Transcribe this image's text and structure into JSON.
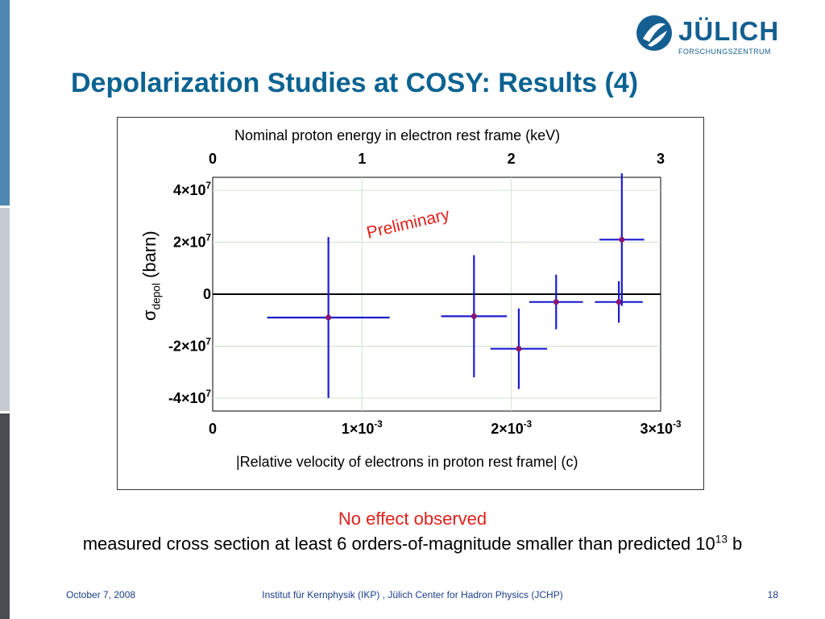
{
  "colors": {
    "title": "#0b6391",
    "accent": "#e0211b",
    "footer_text": "#1a3e8c",
    "data_series": "#1c1ccd",
    "data_marker": "#8a1470",
    "sidebar_blue": "#4e87b2",
    "sidebar_light": "#c6cbd2",
    "sidebar_dark": "#4a4d52",
    "logo_blue": "#145f91"
  },
  "logo": {
    "name": "JÜLICH",
    "subtitle": "FORSCHUNGSZENTRUM",
    "icon": "julich-logo-icon"
  },
  "slide": {
    "title": "Depolarization Studies at COSY: Results (4)",
    "note_highlight": "No effect observed",
    "note_text": "measured cross section at least 6 orders-of-magnitude smaller than predicted 10",
    "note_exponent": "13",
    "note_unit": " b"
  },
  "footer": {
    "date": "October 7, 2008",
    "institute": "Institut für Kernphysik (IKP) , Jülich Center for Hadron Physics (JCHP)",
    "page": "18"
  },
  "chart_data": {
    "type": "scatter",
    "annotation": "Preliminary",
    "xlabel": "|Relative velocity of electrons in proton rest frame| (c)",
    "x2label": "Nominal proton energy in electron rest frame (keV)",
    "ylabel_symbol": "σ",
    "ylabel_subscript": "depol",
    "ylabel_unit": " (barn)",
    "xlim": [
      0,
      0.003
    ],
    "x2lim": [
      0,
      3
    ],
    "ylim": [
      -45000000,
      45000000
    ],
    "grid": true,
    "x_ticks": [
      {
        "value": 0,
        "label": "0",
        "exp": ""
      },
      {
        "value": 0.001,
        "label": "1×10",
        "exp": "-3"
      },
      {
        "value": 0.002,
        "label": "2×10",
        "exp": "-3"
      },
      {
        "value": 0.003,
        "label": "3×10",
        "exp": "-3"
      }
    ],
    "x2_ticks": [
      {
        "value": 0,
        "label": "0"
      },
      {
        "value": 1,
        "label": "1"
      },
      {
        "value": 2,
        "label": "2"
      },
      {
        "value": 3,
        "label": "3"
      }
    ],
    "y_ticks": [
      {
        "value": 40000000,
        "label": "4×10",
        "exp": "7"
      },
      {
        "value": 20000000,
        "label": "2×10",
        "exp": "7"
      },
      {
        "value": 0,
        "label": "0",
        "exp": ""
      },
      {
        "value": -20000000,
        "label": "-2×10",
        "exp": "7"
      },
      {
        "value": -40000000,
        "label": "-4×10",
        "exp": "7"
      }
    ],
    "series": [
      {
        "points": [
          {
            "x": 0.000775,
            "y": -9000000,
            "xerr": 0.00041,
            "yerr": 31000000
          },
          {
            "x": 0.00175,
            "y": -8500000,
            "xerr": 0.00022,
            "yerr": 23500000
          },
          {
            "x": 0.00205,
            "y": -21000000,
            "xerr": 0.00019,
            "yerr": 15500000
          },
          {
            "x": 0.0023,
            "y": -3000000,
            "xerr": 0.00018,
            "yerr": 10500000
          },
          {
            "x": 0.00272,
            "y": -3000000,
            "xerr": 0.00016,
            "yerr": 8000000
          },
          {
            "x": 0.00274,
            "y": 21000000,
            "xerr": 0.00015,
            "yerr": 25500000
          }
        ]
      }
    ]
  }
}
